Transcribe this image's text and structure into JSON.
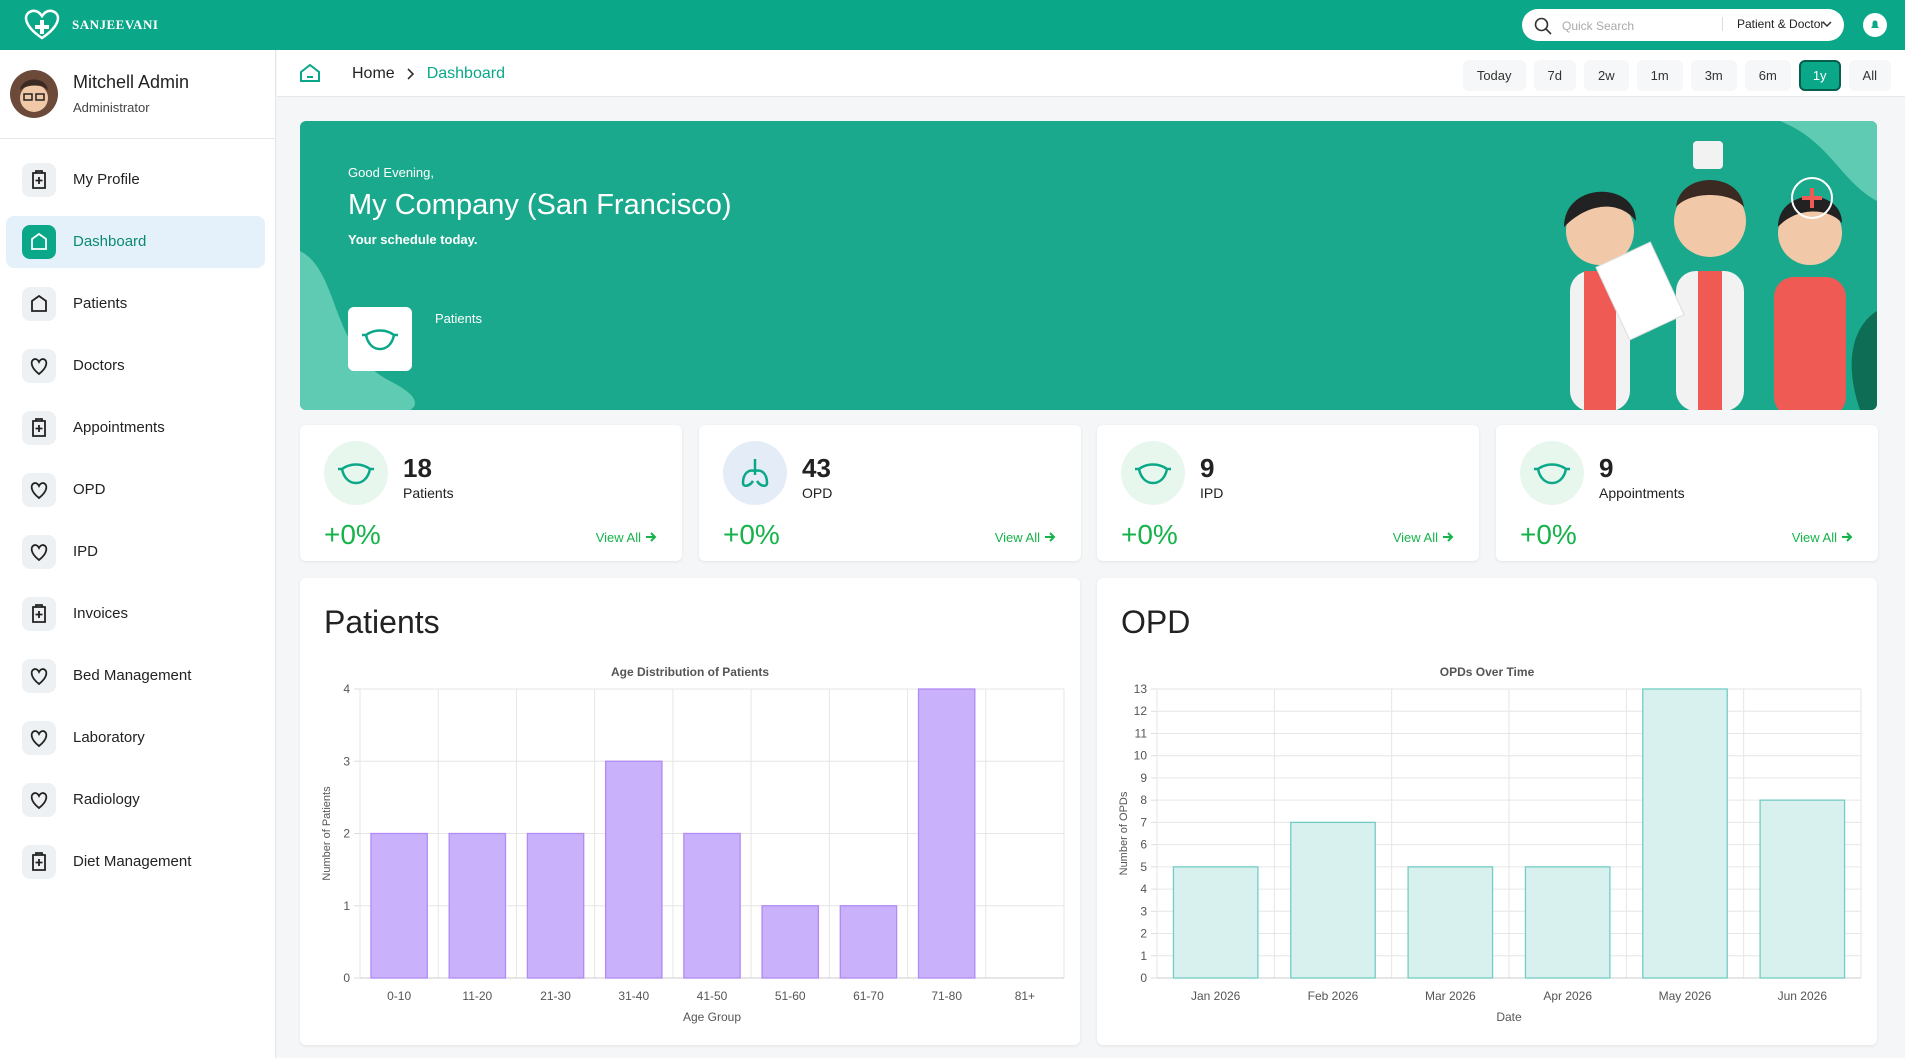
{
  "header": {
    "brand": "Sanjeevani",
    "search_placeholder": "Quick Search",
    "search_scope": "Patient & Doctor"
  },
  "user": {
    "name": "Mitchell Admin",
    "role": "Administrator"
  },
  "nav": [
    {
      "label": "My Profile"
    },
    {
      "label": "Dashboard",
      "active": true
    },
    {
      "label": "Patients"
    },
    {
      "label": "Doctors"
    },
    {
      "label": "Appointments"
    },
    {
      "label": "OPD"
    },
    {
      "label": "IPD"
    },
    {
      "label": "Invoices"
    },
    {
      "label": "Bed Management"
    },
    {
      "label": "Laboratory"
    },
    {
      "label": "Radiology"
    },
    {
      "label": "Diet Management"
    }
  ],
  "breadcrumb": [
    "Home",
    "Dashboard"
  ],
  "ranges": [
    {
      "label": "Today"
    },
    {
      "label": "7d"
    },
    {
      "label": "2w"
    },
    {
      "label": "1m"
    },
    {
      "label": "3m"
    },
    {
      "label": "6m"
    },
    {
      "label": "1y",
      "active": true
    },
    {
      "label": "All"
    }
  ],
  "banner": {
    "greeting": "Good Evening,",
    "company": "My Company (San Francisco)",
    "subtitle": "Your schedule today.",
    "tile": "Patients"
  },
  "stats": [
    {
      "value": "18",
      "label": "Patients",
      "change": "+0%",
      "link": "View All"
    },
    {
      "value": "43",
      "label": "OPD",
      "change": "+0%",
      "link": "View All"
    },
    {
      "value": "9",
      "label": "IPD",
      "change": "+0%",
      "link": "View All"
    },
    {
      "value": "9",
      "label": "Appointments",
      "change": "+0%",
      "link": "View All"
    }
  ],
  "chart_data": [
    {
      "type": "bar",
      "heading": "Patients",
      "title": "Age Distribution of Patients",
      "x_label": "Age Group",
      "y_label": "Number of Patients",
      "categories": [
        "0-10",
        "11-20",
        "21-30",
        "31-40",
        "41-50",
        "51-60",
        "61-70",
        "71-80",
        "81+"
      ],
      "values": [
        2,
        2,
        2,
        3,
        2,
        1,
        1,
        4,
        0
      ],
      "color": "#c9b2fb",
      "border": "#b18af4",
      "ylim": [
        0,
        4
      ],
      "yticks": [
        0,
        1,
        2,
        3,
        4
      ],
      "grid": true
    },
    {
      "type": "bar",
      "heading": "OPD",
      "title": "OPDs Over Time",
      "x_label": "Date",
      "y_label": "Number of OPDs",
      "categories": [
        "Jan 2026",
        "Feb 2026",
        "Mar 2026",
        "Apr 2026",
        "May 2026",
        "Jun 2026"
      ],
      "values": [
        5,
        7,
        5,
        5,
        13,
        8
      ],
      "color": "#d8f1ef",
      "border": "#74cdc3",
      "ylim": [
        0,
        13
      ],
      "yticks": [
        0,
        1,
        2,
        3,
        4,
        5,
        6,
        7,
        8,
        9,
        10,
        11,
        12,
        13
      ],
      "grid": true
    }
  ]
}
